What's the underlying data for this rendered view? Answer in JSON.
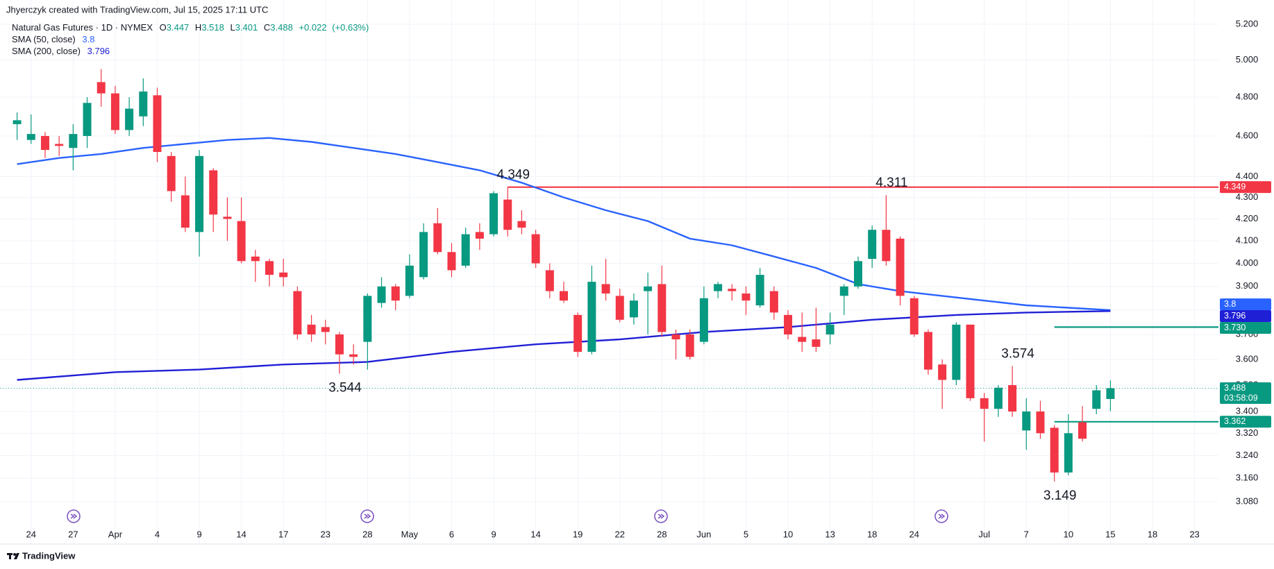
{
  "attribution": "Jhyerczyk created with TradingView.com, Jul 15, 2025 17:11 UTC",
  "brand": "TradingView",
  "chart_data": {
    "type": "candlestick",
    "title": "Natural Gas Futures · 1D · NYMEX",
    "ohlc_keys": [
      "O",
      "H",
      "L",
      "C"
    ],
    "change": {
      "value": 0.022,
      "label": "+0.022"
    },
    "change_pct": {
      "value": 0.63,
      "label": "(+0.63%)"
    },
    "countdown": "03:58:09",
    "up_color": "#089981",
    "down_color": "#f23645",
    "log": true,
    "grid": true,
    "x": [
      "Mar 21",
      "Mar 24",
      "Mar 25",
      "Mar 26",
      "Mar 27",
      "Mar 28",
      "Mar 31",
      "Apr 1",
      "Apr 2",
      "Apr 3",
      "Apr 4",
      "Apr 7",
      "Apr 8",
      "Apr 9",
      "Apr 10",
      "Apr 11",
      "Apr 14",
      "Apr 15",
      "Apr 16",
      "Apr 17",
      "Apr 21",
      "Apr 22",
      "Apr 23",
      "Apr 24",
      "Apr 25",
      "Apr 28",
      "Apr 29",
      "Apr 30",
      "May 1",
      "May 2",
      "May 5",
      "May 6",
      "May 7",
      "May 8",
      "May 9",
      "May 12",
      "May 13",
      "May 14",
      "May 15",
      "May 16",
      "May 19",
      "May 20",
      "May 21",
      "May 22",
      "May 23",
      "May 27",
      "May 28",
      "May 29",
      "May 30",
      "Jun 2",
      "Jun 3",
      "Jun 4",
      "Jun 5",
      "Jun 6",
      "Jun 9",
      "Jun 10",
      "Jun 11",
      "Jun 12",
      "Jun 13",
      "Jun 16",
      "Jun 17",
      "Jun 18",
      "Jun 20",
      "Jun 23",
      "Jun 24",
      "Jun 25",
      "Jun 26",
      "Jun 27",
      "Jun 30",
      "Jul 1",
      "Jul 2",
      "Jul 3",
      "Jul 7",
      "Jul 8",
      "Jul 9",
      "Jul 10",
      "Jul 11",
      "Jul 14",
      "Jul 15",
      "Jul 16",
      "Jul 17",
      "Jul 18",
      "Jul 21",
      "Jul 22",
      "Jul 23"
    ],
    "open": [
      4.66,
      4.58,
      4.6,
      4.56,
      4.54,
      4.6,
      4.88,
      4.82,
      4.63,
      4.7,
      4.81,
      4.5,
      4.31,
      4.14,
      4.43,
      4.21,
      4.19,
      4.03,
      4.01,
      3.96,
      3.88,
      3.74,
      3.73,
      3.7,
      3.62,
      3.67,
      3.83,
      3.9,
      3.86,
      3.94,
      4.18,
      4.05,
      3.99,
      4.14,
      4.13,
      4.29,
      4.19,
      4.13,
      3.97,
      3.88,
      3.78,
      3.63,
      3.91,
      3.86,
      3.77,
      3.88,
      3.91,
      3.7,
      3.7,
      3.67,
      3.88,
      3.89,
      3.87,
      3.82,
      3.88,
      3.78,
      3.69,
      3.68,
      3.7,
      3.86,
      3.9,
      4.02,
      4.15,
      4.11,
      3.85,
      3.71,
      3.58,
      3.52,
      3.74,
      3.45,
      3.41,
      3.5,
      3.33,
      3.4,
      3.34,
      3.18,
      3.36,
      3.41,
      3.447,
      null,
      null,
      null,
      null,
      null,
      null
    ],
    "high": [
      4.72,
      4.71,
      4.62,
      4.6,
      4.66,
      4.8,
      4.95,
      4.86,
      4.8,
      4.9,
      4.85,
      4.52,
      4.4,
      4.53,
      4.44,
      4.3,
      4.3,
      4.06,
      4.02,
      4.02,
      3.9,
      3.78,
      3.76,
      3.71,
      3.66,
      3.87,
      3.94,
      3.91,
      4.04,
      4.18,
      4.25,
      4.09,
      4.16,
      4.18,
      4.33,
      4.349,
      4.24,
      4.15,
      4.0,
      3.92,
      3.79,
      3.99,
      4.02,
      3.89,
      3.87,
      3.96,
      3.99,
      3.72,
      3.72,
      3.9,
      3.92,
      3.91,
      3.9,
      3.98,
      3.9,
      3.8,
      3.79,
      3.81,
      3.79,
      3.91,
      4.03,
      4.17,
      4.311,
      4.12,
      3.86,
      3.72,
      3.6,
      3.75,
      3.74,
      3.47,
      3.5,
      3.574,
      3.45,
      3.44,
      3.35,
      3.39,
      3.42,
      3.5,
      3.518,
      null,
      null,
      null,
      null,
      null,
      null
    ],
    "low": [
      4.58,
      4.56,
      4.49,
      4.5,
      4.43,
      4.54,
      4.75,
      4.61,
      4.6,
      4.65,
      4.47,
      4.28,
      4.14,
      4.03,
      4.14,
      4.1,
      4.0,
      3.92,
      3.9,
      3.9,
      3.68,
      3.67,
      3.66,
      3.544,
      3.58,
      3.56,
      3.81,
      3.8,
      3.85,
      3.93,
      4.04,
      3.94,
      3.98,
      4.06,
      4.12,
      4.12,
      4.13,
      3.98,
      3.85,
      3.83,
      3.61,
      3.62,
      3.84,
      3.75,
      3.74,
      3.7,
      3.69,
      3.6,
      3.6,
      3.66,
      3.85,
      3.84,
      3.78,
      3.81,
      3.76,
      3.68,
      3.63,
      3.63,
      3.66,
      3.78,
      3.89,
      3.98,
      3.99,
      3.82,
      3.69,
      3.54,
      3.41,
      3.5,
      3.44,
      3.29,
      3.38,
      3.38,
      3.26,
      3.3,
      3.149,
      3.17,
      3.29,
      3.39,
      3.401,
      null,
      null,
      null,
      null,
      null,
      null
    ],
    "close": [
      4.68,
      4.61,
      4.53,
      4.55,
      4.61,
      4.77,
      4.82,
      4.63,
      4.74,
      4.83,
      4.52,
      4.33,
      4.16,
      4.5,
      4.22,
      4.2,
      4.01,
      4.01,
      3.95,
      3.94,
      3.7,
      3.7,
      3.71,
      3.62,
      3.61,
      3.86,
      3.9,
      3.84,
      3.99,
      4.14,
      4.05,
      3.97,
      4.13,
      4.11,
      4.32,
      4.15,
      4.16,
      4.0,
      3.88,
      3.84,
      3.63,
      3.92,
      3.87,
      3.76,
      3.84,
      3.9,
      3.71,
      3.68,
      3.61,
      3.85,
      3.91,
      3.88,
      3.84,
      3.95,
      3.79,
      3.7,
      3.67,
      3.65,
      3.74,
      3.9,
      4.01,
      4.15,
      4.01,
      3.86,
      3.7,
      3.56,
      3.52,
      3.74,
      3.45,
      3.41,
      3.49,
      3.4,
      3.4,
      3.32,
      3.18,
      3.32,
      3.3,
      3.48,
      3.488,
      null,
      null,
      null,
      null,
      null,
      null
    ],
    "series": [
      {
        "name": "SMA (50, close)",
        "color": "#2962ff",
        "x": [
          "Mar 21",
          "Mar 26",
          "Mar 31",
          "Apr 3",
          "Apr 8",
          "Apr 11",
          "Apr 16",
          "Apr 22",
          "Apr 25",
          "Apr 30",
          "May 5",
          "May 8",
          "May 13",
          "May 16",
          "May 21",
          "May 27",
          "May 30",
          "Jun 4",
          "Jun 9",
          "Jun 12",
          "Jun 17",
          "Jun 23",
          "Jun 26",
          "Jul 1",
          "Jul 7",
          "Jul 10",
          "Jul 15"
        ],
        "values": [
          4.46,
          4.49,
          4.51,
          4.54,
          4.56,
          4.58,
          4.59,
          4.57,
          4.54,
          4.51,
          4.47,
          4.43,
          4.37,
          4.3,
          4.24,
          4.19,
          4.11,
          4.08,
          4.03,
          3.98,
          3.91,
          3.88,
          3.86,
          3.84,
          3.82,
          3.81,
          3.8
        ]
      },
      {
        "name": "SMA (200, close)",
        "color": "#1f1fd6",
        "x": [
          "Mar 21",
          "Apr 1",
          "Apr 9",
          "Apr 17",
          "Apr 28",
          "May 6",
          "May 14",
          "May 22",
          "Jun 2",
          "Jun 10",
          "Jun 18",
          "Jun 27",
          "Jul 7",
          "Jul 15"
        ],
        "values": [
          3.52,
          3.55,
          3.56,
          3.58,
          3.59,
          3.63,
          3.66,
          3.68,
          3.71,
          3.73,
          3.76,
          3.78,
          3.79,
          3.796
        ]
      }
    ],
    "price_lines": [
      {
        "value": 4.349,
        "color": "#f23645",
        "from": "May 12"
      },
      {
        "value": 3.73,
        "label": "3.730",
        "color": "#089981",
        "from": "Jul 9"
      },
      {
        "value": 3.362,
        "color": "#089981",
        "from": "Jul 9"
      }
    ],
    "annotations": [
      {
        "value": 4.349,
        "at": "May 12"
      },
      {
        "value": 4.311,
        "at": "Jun 20"
      },
      {
        "value": 3.544,
        "at": "Apr 24"
      },
      {
        "value": 3.574,
        "at": "Jul 3"
      },
      {
        "value": 3.149,
        "at": "Jul 9"
      }
    ],
    "ylim": [
      2.94,
      5.34
    ],
    "yticks": [
      {
        "value": 5.2,
        "label": "5.200"
      },
      {
        "value": 5.0,
        "label": "5.000"
      },
      {
        "value": 4.8,
        "label": "4.800"
      },
      {
        "value": 4.6,
        "label": "4.600"
      },
      {
        "value": 4.4,
        "label": "4.400"
      },
      {
        "value": 4.3,
        "label": "4.300"
      },
      {
        "value": 4.2,
        "label": "4.200"
      },
      {
        "value": 4.1,
        "label": "4.100"
      },
      {
        "value": 4.0,
        "label": "4.000"
      },
      {
        "value": 3.9,
        "label": "3.900"
      },
      {
        "value": 3.8,
        "label": "3.800"
      },
      {
        "value": 3.7,
        "label": "3.700"
      },
      {
        "value": 3.6,
        "label": "3.600"
      },
      {
        "value": 3.5,
        "label": "3.500"
      },
      {
        "value": 3.4,
        "label": "3.400"
      },
      {
        "value": 3.32,
        "label": "3.320"
      },
      {
        "value": 3.24,
        "label": "3.240"
      },
      {
        "value": 3.16,
        "label": "3.160"
      },
      {
        "value": 3.08,
        "label": "3.080"
      }
    ],
    "xticks": [
      {
        "value": "Mar 24",
        "label": "24"
      },
      {
        "value": "Mar 27",
        "label": "27"
      },
      {
        "value": "Apr 1",
        "label": "Apr"
      },
      {
        "value": "Apr 4",
        "label": "4"
      },
      {
        "value": "Apr 9",
        "label": "9"
      },
      {
        "value": "Apr 14",
        "label": "14"
      },
      {
        "value": "Apr 17",
        "label": "17"
      },
      {
        "value": "Apr 23",
        "label": "23"
      },
      {
        "value": "Apr 28",
        "label": "28"
      },
      {
        "value": "May 1",
        "label": "May"
      },
      {
        "value": "May 6",
        "label": "6"
      },
      {
        "value": "May 9",
        "label": "9"
      },
      {
        "value": "May 14",
        "label": "14"
      },
      {
        "value": "May 19",
        "label": "19"
      },
      {
        "value": "May 22",
        "label": "22"
      },
      {
        "value": "May 28",
        "label": "28"
      },
      {
        "value": "Jun 2",
        "label": "Jun"
      },
      {
        "value": "Jun 5",
        "label": "5"
      },
      {
        "value": "Jun 10",
        "label": "10"
      },
      {
        "value": "Jun 13",
        "label": "13"
      },
      {
        "value": "Jun 18",
        "label": "18"
      },
      {
        "value": "Jun 24",
        "label": "24"
      },
      {
        "value": "Jul 1",
        "label": "Jul"
      },
      {
        "value": "Jul 7",
        "label": "7"
      },
      {
        "value": "Jul 10",
        "label": "10"
      },
      {
        "value": "Jul 15",
        "label": "15"
      },
      {
        "value": "Jul 18",
        "label": "18"
      },
      {
        "value": "Jul 23",
        "label": "23"
      }
    ]
  }
}
